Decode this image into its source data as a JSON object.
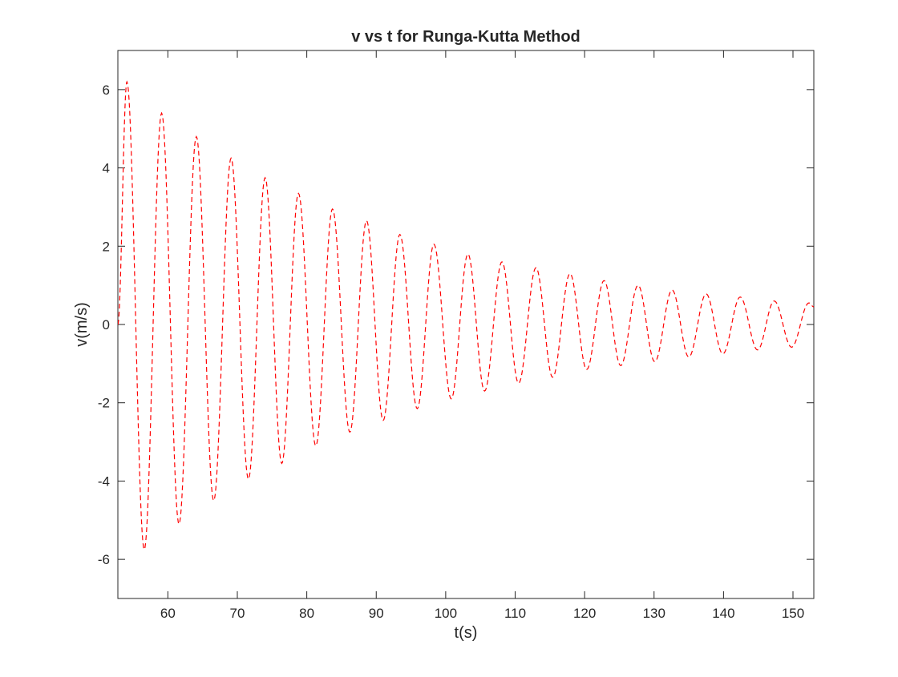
{
  "chart_data": {
    "type": "line",
    "title": "v vs t for Runga-Kutta Method",
    "xlabel": "t(s)",
    "ylabel": "v(m/s)",
    "xlim": [
      52.8,
      153
    ],
    "ylim": [
      -7,
      7
    ],
    "xticks": [
      60,
      70,
      80,
      90,
      100,
      110,
      120,
      130,
      140,
      150
    ],
    "yticks": [
      -6,
      -4,
      -2,
      0,
      2,
      4,
      6
    ],
    "xtick_labels": [
      "60",
      "70",
      "80",
      "90",
      "100",
      "110",
      "120",
      "130",
      "140",
      "150"
    ],
    "ytick_labels": [
      "-6",
      "-4",
      "-2",
      "0",
      "2",
      "4",
      "6"
    ],
    "grid": false,
    "legend": "none",
    "series": [
      {
        "color": "#ff0000",
        "line_style": "dashed",
        "points": [
          [
            52.8,
            0.0
          ],
          [
            54.1,
            6.2
          ],
          [
            56.6,
            -5.75
          ],
          [
            59.1,
            5.4
          ],
          [
            61.6,
            -5.1
          ],
          [
            64.1,
            4.8
          ],
          [
            66.6,
            -4.5
          ],
          [
            69.1,
            4.25
          ],
          [
            71.6,
            -3.95
          ],
          [
            74.0,
            3.75
          ],
          [
            76.4,
            -3.55
          ],
          [
            78.8,
            3.35
          ],
          [
            81.3,
            -3.1
          ],
          [
            83.7,
            2.95
          ],
          [
            86.2,
            -2.75
          ],
          [
            88.6,
            2.65
          ],
          [
            91.0,
            -2.45
          ],
          [
            93.4,
            2.3
          ],
          [
            95.9,
            -2.15
          ],
          [
            98.3,
            2.05
          ],
          [
            100.8,
            -1.9
          ],
          [
            103.2,
            1.8
          ],
          [
            105.6,
            -1.7
          ],
          [
            108.1,
            1.6
          ],
          [
            110.5,
            -1.5
          ],
          [
            113.0,
            1.45
          ],
          [
            115.4,
            -1.35
          ],
          [
            117.9,
            1.3
          ],
          [
            120.3,
            -1.15
          ],
          [
            122.8,
            1.12
          ],
          [
            125.2,
            -1.05
          ],
          [
            127.7,
            1.0
          ],
          [
            130.1,
            -0.95
          ],
          [
            132.6,
            0.88
          ],
          [
            135.0,
            -0.83
          ],
          [
            137.5,
            0.78
          ],
          [
            139.9,
            -0.75
          ],
          [
            142.4,
            0.7
          ],
          [
            144.9,
            -0.65
          ],
          [
            147.3,
            0.6
          ],
          [
            149.8,
            -0.58
          ],
          [
            152.3,
            0.55
          ],
          [
            153.0,
            0.45
          ]
        ]
      }
    ]
  }
}
